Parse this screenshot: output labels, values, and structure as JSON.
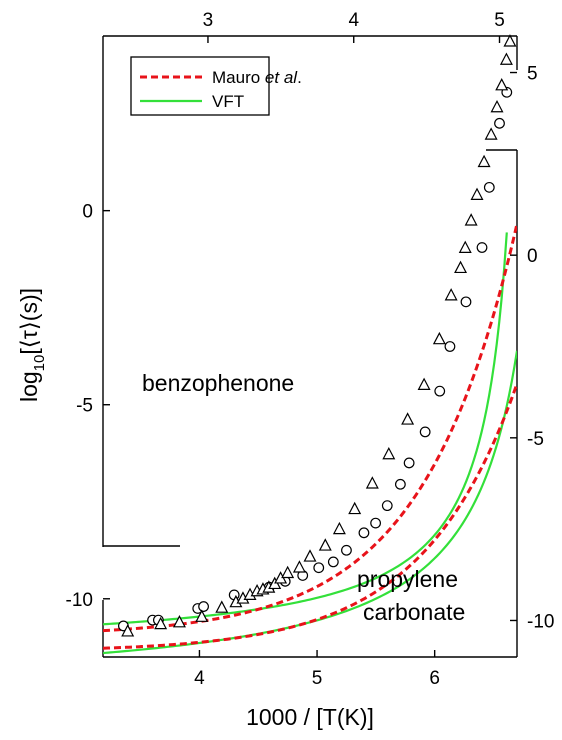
{
  "chart_data": {
    "type": "scatter",
    "xlabel": "1000 / [T(K)]",
    "ylabel_parts": {
      "pre": "log",
      "sub": "10",
      "post": "[⟨τ⟩(s)]"
    },
    "axes": {
      "bottom": {
        "range": [
          3.18,
          6.7
        ],
        "ticks": [
          4,
          5,
          6
        ]
      },
      "top": {
        "range": [
          2.28,
          5.12
        ],
        "ticks": [
          3,
          4,
          5
        ]
      },
      "left": {
        "range": [
          -11.5,
          4.5
        ],
        "ticks": [
          0,
          -5,
          -10
        ]
      },
      "right": {
        "range": [
          -11,
          6
        ],
        "ticks": [
          5,
          0,
          -5,
          -10
        ]
      }
    },
    "legend": {
      "placement": "top-left",
      "entries": [
        {
          "pre": "Mauro ",
          "italic": "et al",
          "post": ".",
          "color": "#e8131a",
          "style": "dashed"
        },
        {
          "pre": "VFT",
          "italic": "",
          "post": "",
          "color": "#33e03a",
          "style": "solid"
        }
      ]
    },
    "annotations": [
      "benzophenone",
      "propylene",
      "carbonate"
    ],
    "series": [
      {
        "marker": "circle",
        "axes": "top-left",
        "x": [
          2.42,
          2.62,
          2.66,
          2.93,
          2.97,
          3.18,
          3.42,
          3.53,
          3.65,
          3.76,
          3.86,
          3.95,
          4.07,
          4.15,
          4.23,
          4.32,
          4.38,
          4.49,
          4.59,
          4.66,
          4.77,
          4.88,
          4.93,
          5.0,
          5.05
        ],
        "y": [
          -10.7,
          -10.55,
          -10.55,
          -10.25,
          -10.2,
          -9.9,
          -9.7,
          -9.55,
          -9.4,
          -9.2,
          -9.05,
          -8.75,
          -8.3,
          -8.05,
          -7.6,
          -7.05,
          -6.5,
          -5.7,
          -4.65,
          -3.5,
          -2.35,
          -0.95,
          0.6,
          2.25,
          3.05
        ]
      },
      {
        "marker": "triangle",
        "axes": "bottom-right",
        "x": [
          3.39,
          3.67,
          3.83,
          4.02,
          4.19,
          4.31,
          4.37,
          4.43,
          4.49,
          4.54,
          4.59,
          4.64,
          4.69,
          4.75,
          4.85,
          4.94,
          5.07,
          5.19,
          5.32,
          5.47,
          5.61,
          5.77,
          5.91,
          6.04,
          6.14,
          6.22,
          6.26,
          6.31,
          6.36,
          6.42,
          6.48,
          6.53,
          6.57,
          6.61,
          6.64
        ],
        "y": [
          -10.3,
          -10.1,
          -10.05,
          -9.9,
          -9.65,
          -9.5,
          -9.4,
          -9.3,
          -9.2,
          -9.15,
          -9.1,
          -9.0,
          -8.85,
          -8.7,
          -8.55,
          -8.25,
          -7.95,
          -7.5,
          -6.95,
          -6.25,
          -5.45,
          -4.5,
          -3.55,
          -2.3,
          -1.1,
          -0.35,
          0.2,
          0.95,
          1.65,
          2.55,
          3.3,
          4.05,
          4.65,
          5.35,
          5.85
        ]
      }
    ],
    "colors": {
      "mauro": "#e8131a",
      "vft": "#33e03a",
      "axis": "#000000"
    }
  }
}
